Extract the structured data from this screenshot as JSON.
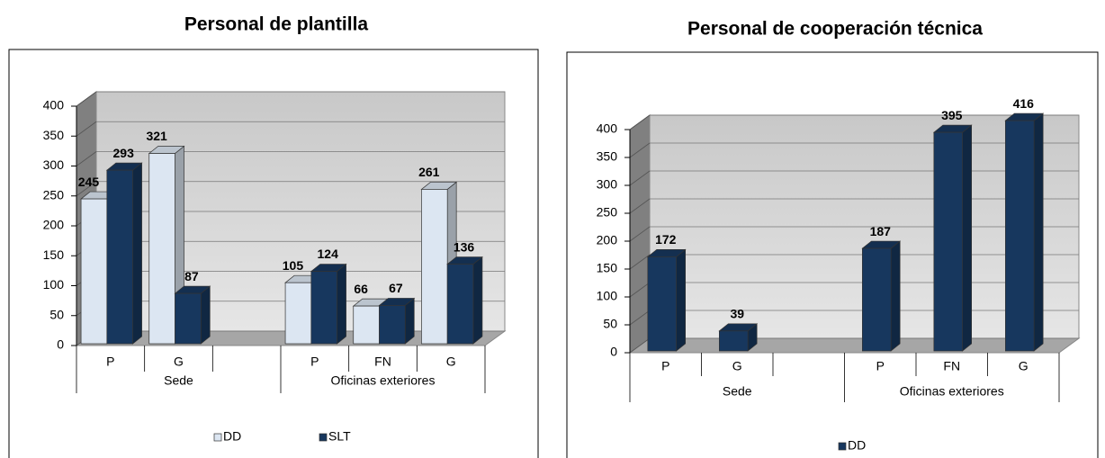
{
  "chart_data": [
    {
      "type": "bar3d",
      "title": "Personal de plantilla",
      "categories": [
        "P",
        "G",
        null,
        "P",
        "FN",
        "G"
      ],
      "group_labels": [
        "Sede",
        "Oficinas exteriores"
      ],
      "series": [
        {
          "name": "DD",
          "color": "#dce6f2",
          "values": [
            245,
            321,
            null,
            105,
            66,
            261
          ]
        },
        {
          "name": "SLT",
          "color": "#17375e",
          "values": [
            293,
            87,
            null,
            124,
            67,
            136
          ]
        }
      ],
      "ylim": [
        0,
        400
      ],
      "yticks": [
        0,
        50,
        100,
        150,
        200,
        250,
        300,
        350,
        400
      ],
      "grid": true,
      "legend": "bottom"
    },
    {
      "type": "bar3d",
      "title": "Personal de cooperación técnica",
      "categories": [
        "P",
        "G",
        null,
        "P",
        "FN",
        "G"
      ],
      "group_labels": [
        "Sede",
        "Oficinas exteriores"
      ],
      "series": [
        {
          "name": "DD",
          "color": "#17375e",
          "values": [
            172,
            39,
            null,
            187,
            395,
            416
          ]
        }
      ],
      "ylim": [
        0,
        400
      ],
      "yticks": [
        0,
        50,
        100,
        150,
        200,
        250,
        300,
        350,
        400
      ],
      "grid": true,
      "legend": "bottom"
    }
  ]
}
